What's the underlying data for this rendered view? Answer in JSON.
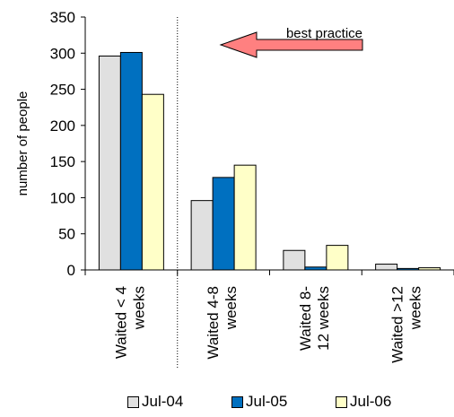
{
  "chart_data": {
    "type": "bar",
    "ylabel": "number of people",
    "xlabel": "",
    "ylim": [
      0,
      350
    ],
    "yticks": [
      0,
      50,
      100,
      150,
      200,
      250,
      300,
      350
    ],
    "grid": false,
    "legend_position": "bottom",
    "categories": [
      [
        "Waited < 4",
        "weeks"
      ],
      [
        "Waited 4-8",
        "weeks"
      ],
      [
        "Waited 8-",
        "12 weeks"
      ],
      [
        "Waited >12",
        "weeks"
      ]
    ],
    "series": [
      {
        "name": "Jul-04",
        "color": "#e0e0e0",
        "values": [
          296,
          96,
          27,
          8
        ]
      },
      {
        "name": "Jul-05",
        "color": "#0070c0",
        "values": [
          301,
          128,
          4,
          2
        ]
      },
      {
        "name": "Jul-06",
        "color": "#ffffc8",
        "values": [
          243,
          145,
          34,
          3
        ]
      }
    ],
    "annotation": {
      "text": "best practice",
      "arrow_direction": "left",
      "arrow_color": "#ff8080"
    }
  }
}
